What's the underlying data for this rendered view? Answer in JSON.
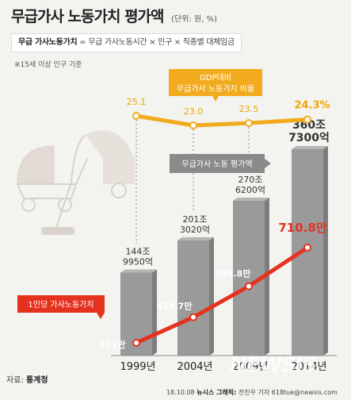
{
  "header": {
    "title": "무급가사 노동가치 평가액",
    "unit": "(단위: 원, %)",
    "formula_label": "무급 가사노동가치",
    "formula_body": "= 무급 가사노동시간 × 인구 × 직종별 대체임금",
    "note": "※15세 이상 인구 기준"
  },
  "footer": {
    "source_prefix": "자료:",
    "source_name": "통계청",
    "credit_date": "18.10.08",
    "credit_agency": "뉴시스 그래픽:",
    "credit_author": "전진우 기자 618tue@newsis.com",
    "watermark": "NEWSIS"
  },
  "colors": {
    "bar": "#9a9a9a",
    "bar_dark": "#7d7d7d",
    "gdp_line": "#f2ab1e",
    "gdp_label": "#f0a500",
    "per_capita_line": "#e5321f",
    "background": "#f3f3f0"
  },
  "chart_data": {
    "type": "bar",
    "categories": [
      "1999년",
      "2004년",
      "2009년",
      "2014년"
    ],
    "series": [
      {
        "name": "무급가사 노동 평가액",
        "type": "bar",
        "values": [
          144.995,
          201.302,
          270.62,
          360.73
        ],
        "labels": [
          [
            "144조",
            "9950억"
          ],
          [
            "201조",
            "3020억"
          ],
          [
            "270조",
            "6200억"
          ],
          [
            "360조",
            "7300억"
          ]
        ]
      },
      {
        "name": "GDP대비 무급가사 노동가치 비율",
        "type": "line",
        "values": [
          25.1,
          23.0,
          23.5,
          24.3
        ],
        "labels": [
          "25.1",
          "23.0",
          "23.5",
          "24.3%"
        ]
      },
      {
        "name": "1인당 가사노동가치",
        "type": "line",
        "values": [
          311,
          418.7,
          548.8,
          710.8
        ],
        "labels": [
          "311만",
          "418.7만",
          "548.8만",
          "710.8만"
        ]
      }
    ],
    "legend_labels": {
      "gdp": [
        "GDP대비",
        "무급가사 노동가치 비율"
      ],
      "bar": "무급가사 노동 평가액",
      "per_capita": "1인당 가사노동가치"
    }
  }
}
